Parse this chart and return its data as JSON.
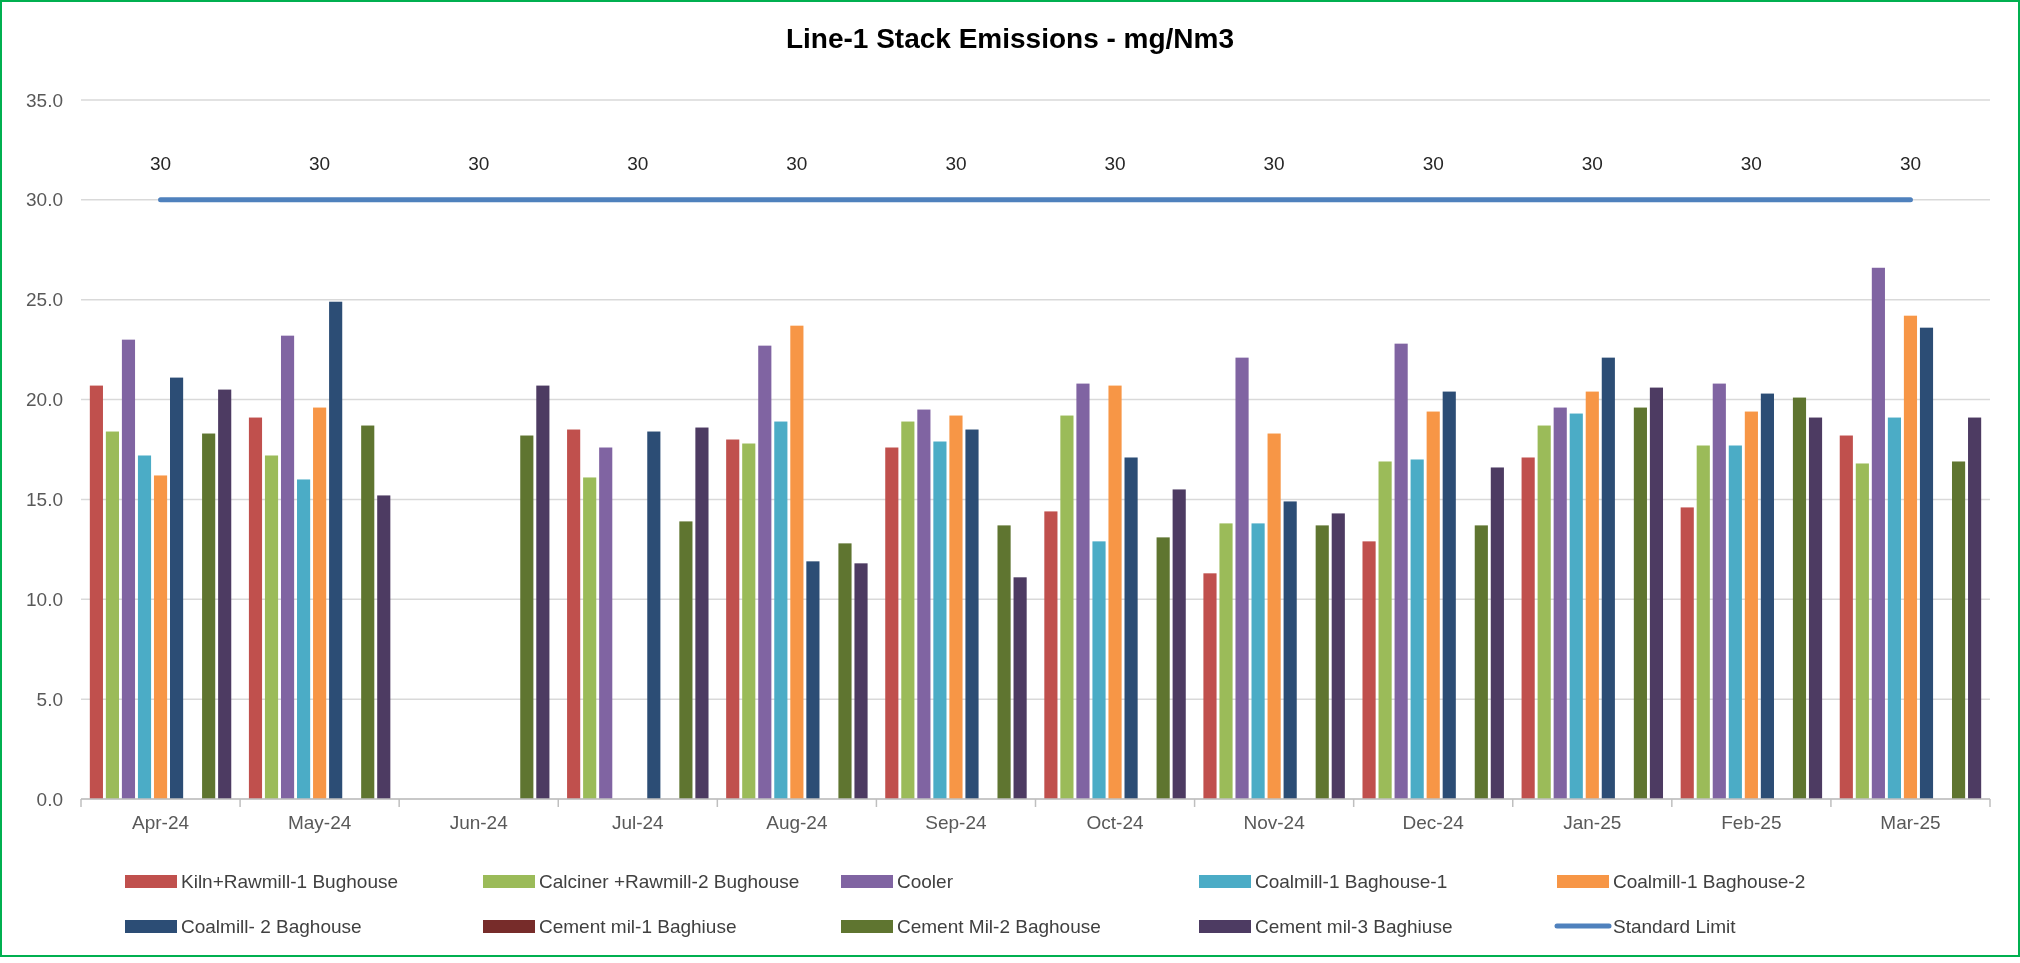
{
  "chart_data": {
    "type": "bar",
    "title": "Line-1 Stack Emissions - mg/Nm3",
    "categories": [
      "Apr-24",
      "May-24",
      "Jun-24",
      "Jul-24",
      "Aug-24",
      "Sep-24",
      "Oct-24",
      "Nov-24",
      "Dec-24",
      "Jan-25",
      "Feb-25",
      "Mar-25"
    ],
    "series": [
      {
        "name": "Kiln+Rawmill-1 Bughouse",
        "color": "#c0504d",
        "values": [
          20.7,
          19.1,
          null,
          18.5,
          18.0,
          17.6,
          14.4,
          11.3,
          12.9,
          17.1,
          14.6,
          18.2
        ]
      },
      {
        "name": "Calciner +Rawmill-2 Bughouse",
        "color": "#9bbb59",
        "values": [
          18.4,
          17.2,
          null,
          16.1,
          17.8,
          18.9,
          19.2,
          13.8,
          16.9,
          18.7,
          17.7,
          16.8
        ]
      },
      {
        "name": "Cooler",
        "color": "#8064a2",
        "values": [
          23.0,
          23.2,
          null,
          17.6,
          22.7,
          19.5,
          20.8,
          22.1,
          22.8,
          19.6,
          20.8,
          26.6
        ]
      },
      {
        "name": "Coalmill-1 Baghouse-1",
        "color": "#4bacc6",
        "values": [
          17.2,
          16.0,
          null,
          null,
          18.9,
          17.9,
          12.9,
          13.8,
          17.0,
          19.3,
          17.7,
          19.1
        ]
      },
      {
        "name": "Coalmill-1 Baghouse-2",
        "color": "#f79646",
        "values": [
          16.2,
          19.6,
          null,
          null,
          23.7,
          19.2,
          20.7,
          18.3,
          19.4,
          20.4,
          19.4,
          24.2
        ]
      },
      {
        "name": "Coalmill- 2 Baghouse",
        "color": "#2c4d75",
        "values": [
          21.1,
          24.9,
          null,
          18.4,
          11.9,
          18.5,
          17.1,
          14.9,
          20.4,
          22.1,
          20.3,
          23.6
        ]
      },
      {
        "name": "Cement mil-1 Baghiuse",
        "color": "#772c2a",
        "values": [
          null,
          null,
          null,
          null,
          null,
          null,
          null,
          null,
          null,
          null,
          null,
          null
        ]
      },
      {
        "name": "Cement Mil-2 Baghouse",
        "color": "#5f7530",
        "values": [
          18.3,
          18.7,
          18.2,
          13.9,
          12.8,
          13.7,
          13.1,
          13.7,
          13.7,
          19.6,
          20.1,
          16.9
        ]
      },
      {
        "name": "Cement mil-3 Baghiuse",
        "color": "#4d3b62",
        "values": [
          20.5,
          15.2,
          20.7,
          18.6,
          11.8,
          11.1,
          15.5,
          14.3,
          16.6,
          20.6,
          19.1,
          19.1
        ]
      },
      {
        "name": "Standard Limit",
        "type": "line",
        "color": "#4f81bd",
        "values": [
          30,
          30,
          30,
          30,
          30,
          30,
          30,
          30,
          30,
          30,
          30,
          30
        ],
        "value_labels": [
          "30",
          "30",
          "30",
          "30",
          "30",
          "30",
          "30",
          "30",
          "30",
          "30",
          "30",
          "30"
        ]
      }
    ],
    "ylim": [
      0,
      35
    ],
    "yticks": [
      {
        "value": 0,
        "label": "0.0"
      },
      {
        "value": 5,
        "label": "5.0"
      },
      {
        "value": 10,
        "label": "10.0"
      },
      {
        "value": 15,
        "label": "15.0"
      },
      {
        "value": 20,
        "label": "20.0"
      },
      {
        "value": 25,
        "label": "25.0"
      },
      {
        "value": 30,
        "label": "30.0"
      },
      {
        "value": 35,
        "label": "35.0"
      }
    ],
    "grid": "y",
    "legend": "bottom"
  }
}
